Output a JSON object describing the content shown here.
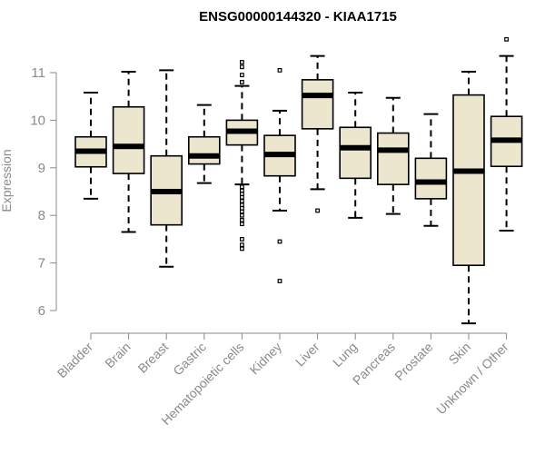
{
  "chart_data": {
    "type": "boxplot",
    "title": "ENSG00000144320 - KIAA1715",
    "xlabel": "",
    "ylabel": "Expression",
    "ylim": [
      5.75,
      11.75
    ],
    "yticks": [
      6,
      7,
      8,
      9,
      10,
      11
    ],
    "colors": {
      "box_fill": "#ede6cf",
      "stroke": "#000000",
      "axis": "#8a8a8a"
    },
    "categories": [
      "Bladder",
      "Brain",
      "Breast",
      "Gastric",
      "Hematopoietic cells",
      "Kidney",
      "Liver",
      "Lung",
      "Pancreas",
      "Prostate",
      "Skin",
      "Unknown / Other"
    ],
    "boxes": [
      {
        "name": "Bladder",
        "whisker_low": 8.35,
        "q1": 9.02,
        "median": 9.35,
        "q3": 9.65,
        "whisker_high": 10.58,
        "outliers": []
      },
      {
        "name": "Brain",
        "whisker_low": 7.65,
        "q1": 8.88,
        "median": 9.45,
        "q3": 10.28,
        "whisker_high": 11.02,
        "outliers": []
      },
      {
        "name": "Breast",
        "whisker_low": 6.92,
        "q1": 7.8,
        "median": 8.5,
        "q3": 9.25,
        "whisker_high": 11.05,
        "outliers": []
      },
      {
        "name": "Gastric",
        "whisker_low": 8.68,
        "q1": 9.08,
        "median": 9.25,
        "q3": 9.65,
        "whisker_high": 10.32,
        "outliers": []
      },
      {
        "name": "Hematopoietic cells",
        "whisker_low": 8.65,
        "q1": 9.48,
        "median": 9.77,
        "q3": 10.0,
        "whisker_high": 10.72,
        "outliers": [
          11.22,
          11.12,
          10.95,
          10.8,
          8.6,
          8.52,
          8.45,
          8.38,
          8.3,
          8.22,
          8.15,
          8.08,
          8.0,
          7.9,
          7.82,
          7.5,
          7.38,
          7.3
        ]
      },
      {
        "name": "Kidney",
        "whisker_low": 8.1,
        "q1": 8.83,
        "median": 9.28,
        "q3": 9.68,
        "whisker_high": 10.2,
        "outliers": [
          11.05,
          7.45,
          6.62
        ]
      },
      {
        "name": "Liver",
        "whisker_low": 8.55,
        "q1": 9.82,
        "median": 10.52,
        "q3": 10.85,
        "whisker_high": 11.35,
        "outliers": [
          8.1
        ]
      },
      {
        "name": "Lung",
        "whisker_low": 7.95,
        "q1": 8.78,
        "median": 9.42,
        "q3": 9.85,
        "whisker_high": 10.58,
        "outliers": []
      },
      {
        "name": "Pancreas",
        "whisker_low": 8.03,
        "q1": 8.65,
        "median": 9.37,
        "q3": 9.73,
        "whisker_high": 10.47,
        "outliers": []
      },
      {
        "name": "Prostate",
        "whisker_low": 7.78,
        "q1": 8.35,
        "median": 8.7,
        "q3": 9.2,
        "whisker_high": 10.13,
        "outliers": []
      },
      {
        "name": "Skin",
        "whisker_low": 5.73,
        "q1": 6.95,
        "median": 8.93,
        "q3": 10.53,
        "whisker_high": 11.02,
        "outliers": []
      },
      {
        "name": "Unknown / Other",
        "whisker_low": 7.68,
        "q1": 9.03,
        "median": 9.58,
        "q3": 10.08,
        "whisker_high": 11.35,
        "outliers": [
          11.7
        ]
      }
    ]
  }
}
